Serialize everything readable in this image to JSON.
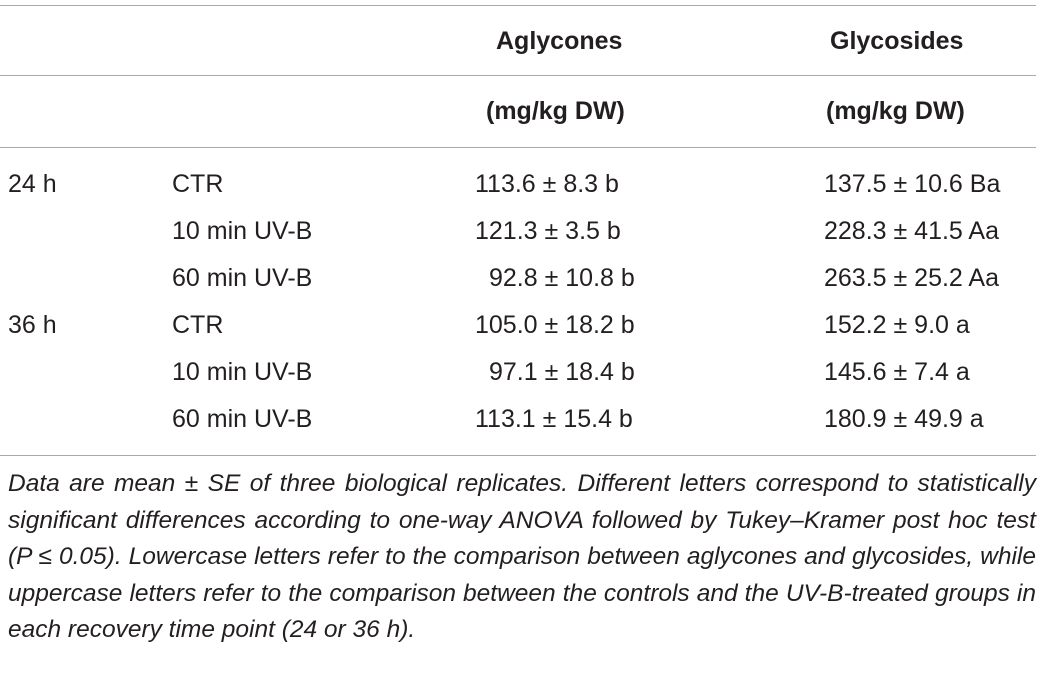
{
  "table": {
    "headers": {
      "aglycones_label": "Aglycones",
      "glycosides_label": "Glycosides",
      "aglycones_unit": "(mg/kg DW)",
      "glycosides_unit": "(mg/kg DW)"
    },
    "rows": [
      {
        "time": "24 h",
        "treatment": "CTR",
        "aglycones": "113.6 ± 8.3 b",
        "glycosides": "137.5 ± 10.6 Ba"
      },
      {
        "time": "",
        "treatment": "10 min UV-B",
        "aglycones": "121.3 ± 3.5 b",
        "glycosides": "228.3 ± 41.5 Aa"
      },
      {
        "time": "",
        "treatment": "60 min UV-B",
        "aglycones": "92.8 ± 10.8 b",
        "glycosides": "263.5 ± 25.2 Aa"
      },
      {
        "time": "36 h",
        "treatment": "CTR",
        "aglycones": "105.0 ± 18.2 b",
        "glycosides": "152.2 ± 9.0 a"
      },
      {
        "time": "",
        "treatment": "10 min UV-B",
        "aglycones": "97.1 ± 18.4 b",
        "glycosides": "145.6 ± 7.4 a"
      },
      {
        "time": "",
        "treatment": "60 min UV-B",
        "aglycones": "113.1 ± 15.4 b",
        "glycosides": "180.9 ± 49.9 a"
      }
    ],
    "footnote": "Data are mean ± SE of three biological replicates. Different letters correspond to statistically significant differences according to one-way ANOVA followed by Tukey–Kramer post hoc test (P ≤ 0.05). Lowercase letters refer to the comparison between aglycones and glycosides, while uppercase letters refer to the comparison between the controls and the UV-B-treated groups in each recovery time point (24 or 36 h)."
  }
}
